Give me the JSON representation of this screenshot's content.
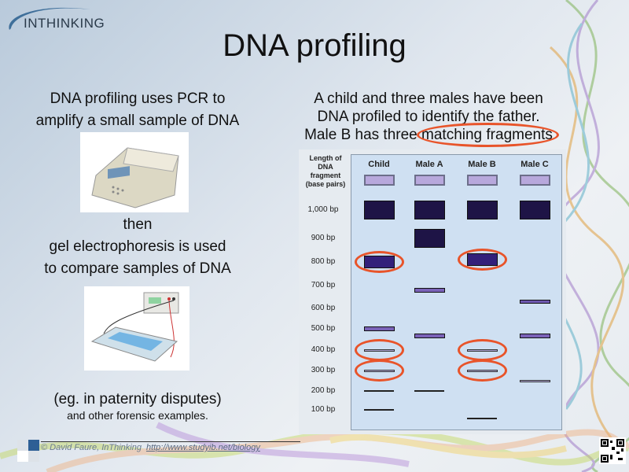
{
  "logo": {
    "text": "INTHINKING"
  },
  "title": "DNA profiling",
  "left": {
    "line1": "DNA profiling uses PCR to",
    "line2": "amplify a small sample of DNA",
    "then": "then",
    "line3": "gel electrophoresis is used",
    "line4": "to compare samples of DNA",
    "example": "(eg. in paternity disputes)",
    "example_sub": "and other forensic examples."
  },
  "right": {
    "line1": "A child and three males have been",
    "line2": "DNA profiled to identify the father.",
    "line3_pre": "Male B has three ",
    "line3_highlight": "matching fragments"
  },
  "footer": {
    "credit": "© David Faure, InThinking",
    "url": "http://www.studyib.net/biology"
  },
  "accent_color": "#e8542a",
  "chart_data": {
    "type": "gel",
    "axis_title": "Length of DNA fragment (base pairs)",
    "y_labels": [
      "1,000 bp",
      "900 bp",
      "800 bp",
      "700 bp",
      "600 bp",
      "500 bp",
      "400 bp",
      "300 bp",
      "200 bp",
      "100 bp"
    ],
    "y_values": [
      1000,
      900,
      800,
      700,
      600,
      500,
      400,
      300,
      200,
      100
    ],
    "lanes": [
      {
        "name": "Child",
        "bands": [
          {
            "bp": 1000,
            "size": "large"
          },
          {
            "bp": 800,
            "size": "medium",
            "circled": true
          },
          {
            "bp": 500,
            "size": "small"
          },
          {
            "bp": 400,
            "size": "thin",
            "circled": true
          },
          {
            "bp": 300,
            "size": "thin",
            "circled": true
          },
          {
            "bp": 200,
            "size": "line"
          },
          {
            "bp": 100,
            "size": "line"
          }
        ]
      },
      {
        "name": "Male A",
        "bands": [
          {
            "bp": 1000,
            "size": "large"
          },
          {
            "bp": 900,
            "size": "large"
          },
          {
            "bp": 680,
            "size": "small"
          },
          {
            "bp": 465,
            "size": "small"
          },
          {
            "bp": 200,
            "size": "line"
          }
        ]
      },
      {
        "name": "Male B",
        "bands": [
          {
            "bp": 1000,
            "size": "large"
          },
          {
            "bp": 810,
            "size": "medium",
            "circled": true
          },
          {
            "bp": 400,
            "size": "thin",
            "circled": true
          },
          {
            "bp": 300,
            "size": "thin",
            "circled": true
          },
          {
            "bp": 55,
            "size": "line"
          }
        ]
      },
      {
        "name": "Male C",
        "bands": [
          {
            "bp": 1000,
            "size": "large"
          },
          {
            "bp": 630,
            "size": "smallthin"
          },
          {
            "bp": 465,
            "size": "small"
          },
          {
            "bp": 250,
            "size": "thin"
          }
        ]
      }
    ]
  }
}
